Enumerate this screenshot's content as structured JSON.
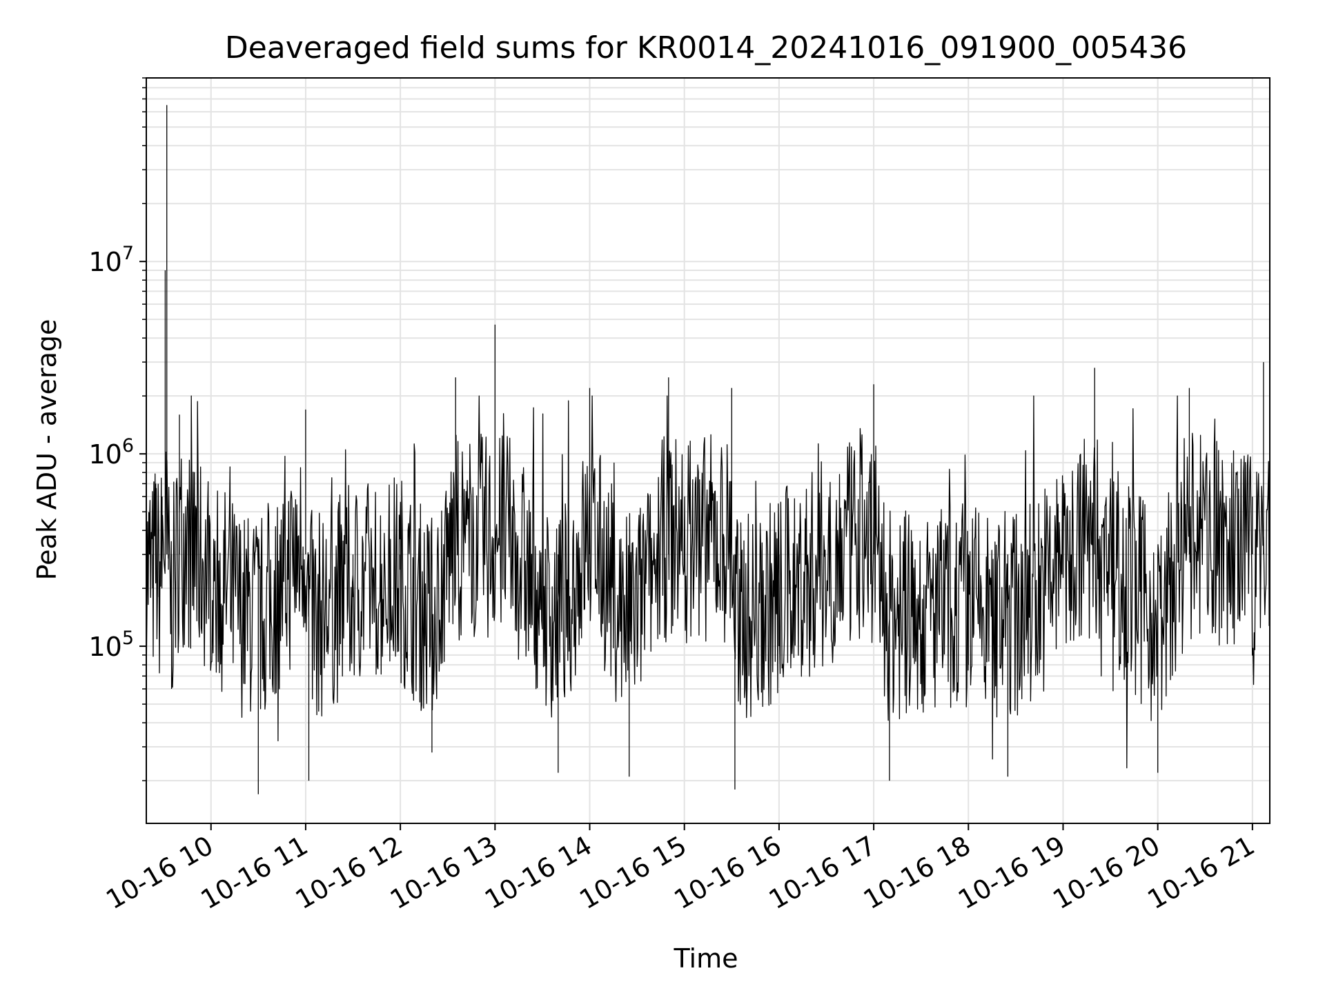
{
  "chart_data": {
    "type": "line",
    "title": "Deaveraged field sums for KR0014_20241016_091900_005436",
    "xlabel": "Time",
    "ylabel": "Peak ADU - average",
    "y_scale": "log",
    "y_tick_labels": [
      {
        "base": "10",
        "exp": "5",
        "value": 100000
      },
      {
        "base": "10",
        "exp": "6",
        "value": 1000000
      },
      {
        "base": "10",
        "exp": "7",
        "value": 10000000
      }
    ],
    "ylim": [
      12000,
      90000000
    ],
    "x_tick_labels": [
      "10-16 10",
      "10-16 11",
      "10-16 12",
      "10-16 13",
      "10-16 14",
      "10-16 15",
      "10-16 16",
      "10-16 17",
      "10-16 18",
      "10-16 19",
      "10-16 20",
      "10-16 21"
    ],
    "xlim": [
      "2024-10-16 09:19",
      "2024-10-16 21:11"
    ],
    "grid": true,
    "legend": "none",
    "colors": {
      "line": "#000000",
      "grid": "#e3e3e3",
      "axes": "#000000"
    },
    "series": [
      {
        "values": [
          {
            "t": "2024-10-16 09:19",
            "y": 280000
          },
          {
            "t": "2024-10-16 09:21",
            "y": 450000
          },
          {
            "t": "2024-10-16 09:23",
            "y": 200000
          },
          {
            "t": "2024-10-16 09:25",
            "y": 700000
          },
          {
            "t": "2024-10-16 09:27",
            "y": 180000
          },
          {
            "t": "2024-10-16 09:29",
            "y": 600000
          },
          {
            "t": "2024-10-16 09:31",
            "y": 9000000
          },
          {
            "t": "2024-10-16 09:32",
            "y": 65000000
          },
          {
            "t": "2024-10-16 09:33",
            "y": 250000
          },
          {
            "t": "2024-10-16 09:35",
            "y": 60000
          },
          {
            "t": "2024-10-16 09:40",
            "y": 1600000
          },
          {
            "t": "2024-10-16 10:00",
            "y": 300000
          },
          {
            "t": "2024-10-16 10:30",
            "y": 17000
          },
          {
            "t": "2024-10-16 11:00",
            "y": 1700000
          },
          {
            "t": "2024-10-16 11:02",
            "y": 20000
          },
          {
            "t": "2024-10-16 11:30",
            "y": 180000
          },
          {
            "t": "2024-10-16 12:00",
            "y": 250000
          },
          {
            "t": "2024-10-16 12:20",
            "y": 28000
          },
          {
            "t": "2024-10-16 12:35",
            "y": 2500000
          },
          {
            "t": "2024-10-16 13:00",
            "y": 4700000
          },
          {
            "t": "2024-10-16 13:40",
            "y": 22000
          },
          {
            "t": "2024-10-16 14:00",
            "y": 2200000
          },
          {
            "t": "2024-10-16 14:25",
            "y": 21000
          },
          {
            "t": "2024-10-16 14:50",
            "y": 2500000
          },
          {
            "t": "2024-10-16 15:30",
            "y": 2200000
          },
          {
            "t": "2024-10-16 15:32",
            "y": 18000
          },
          {
            "t": "2024-10-16 16:00",
            "y": 100000
          },
          {
            "t": "2024-10-16 17:00",
            "y": 2300000
          },
          {
            "t": "2024-10-16 17:10",
            "y": 20000
          },
          {
            "t": "2024-10-16 18:00",
            "y": 80000
          },
          {
            "t": "2024-10-16 18:25",
            "y": 21000
          },
          {
            "t": "2024-10-16 19:20",
            "y": 2800000
          },
          {
            "t": "2024-10-16 20:00",
            "y": 22000
          },
          {
            "t": "2024-10-16 20:20",
            "y": 2200000
          },
          {
            "t": "2024-10-16 21:00",
            "y": 600000
          },
          {
            "t": "2024-10-16 21:07",
            "y": 3000000
          },
          {
            "t": "2024-10-16 21:11",
            "y": 500000
          }
        ]
      }
    ]
  }
}
